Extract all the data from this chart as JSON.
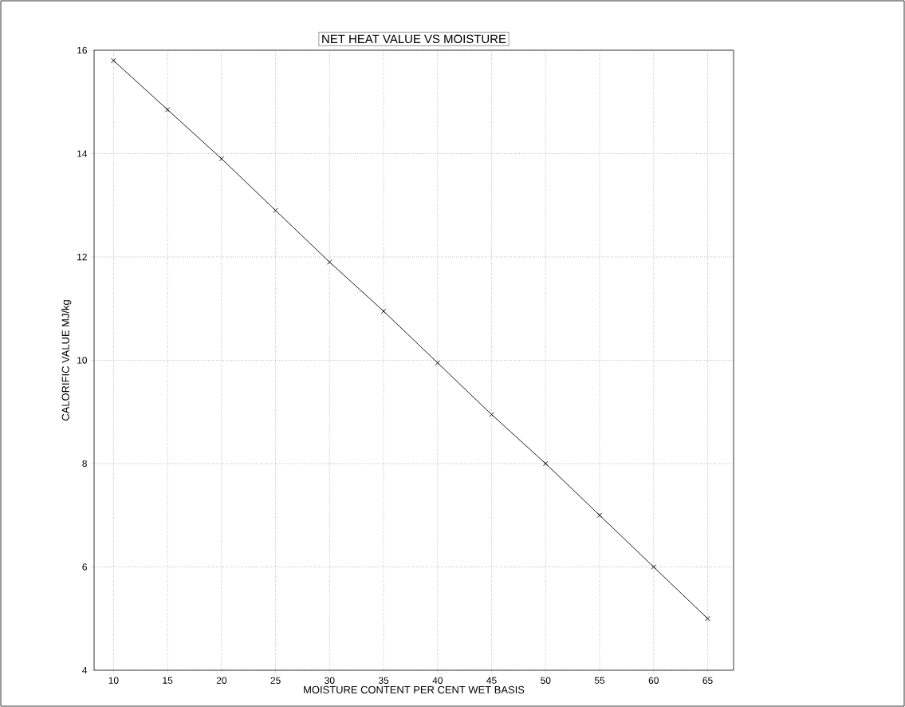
{
  "chart_data": {
    "type": "line",
    "title": "NET HEAT VALUE VS MOISTURE",
    "xlabel": "MOISTURE CONTENT PER CENT WET BASIS",
    "ylabel": "CALORIFIC VALUE MJ/kg",
    "x": [
      10,
      15,
      20,
      25,
      30,
      35,
      40,
      45,
      50,
      55,
      60,
      65
    ],
    "values": [
      15.8,
      14.85,
      13.9,
      12.9,
      11.9,
      10.95,
      9.95,
      8.95,
      8.0,
      7.0,
      6.0,
      5.0
    ],
    "color": "#000000",
    "marker": "cross",
    "line_style": "solid",
    "grid": true,
    "xlim": [
      8.2,
      67.4
    ],
    "xticks": [
      10,
      15,
      20,
      25,
      30,
      35,
      40,
      45,
      50,
      55,
      60,
      65
    ],
    "ylim": [
      4,
      16
    ],
    "yticks": [
      4,
      6,
      8,
      10,
      12,
      14,
      16
    ]
  }
}
